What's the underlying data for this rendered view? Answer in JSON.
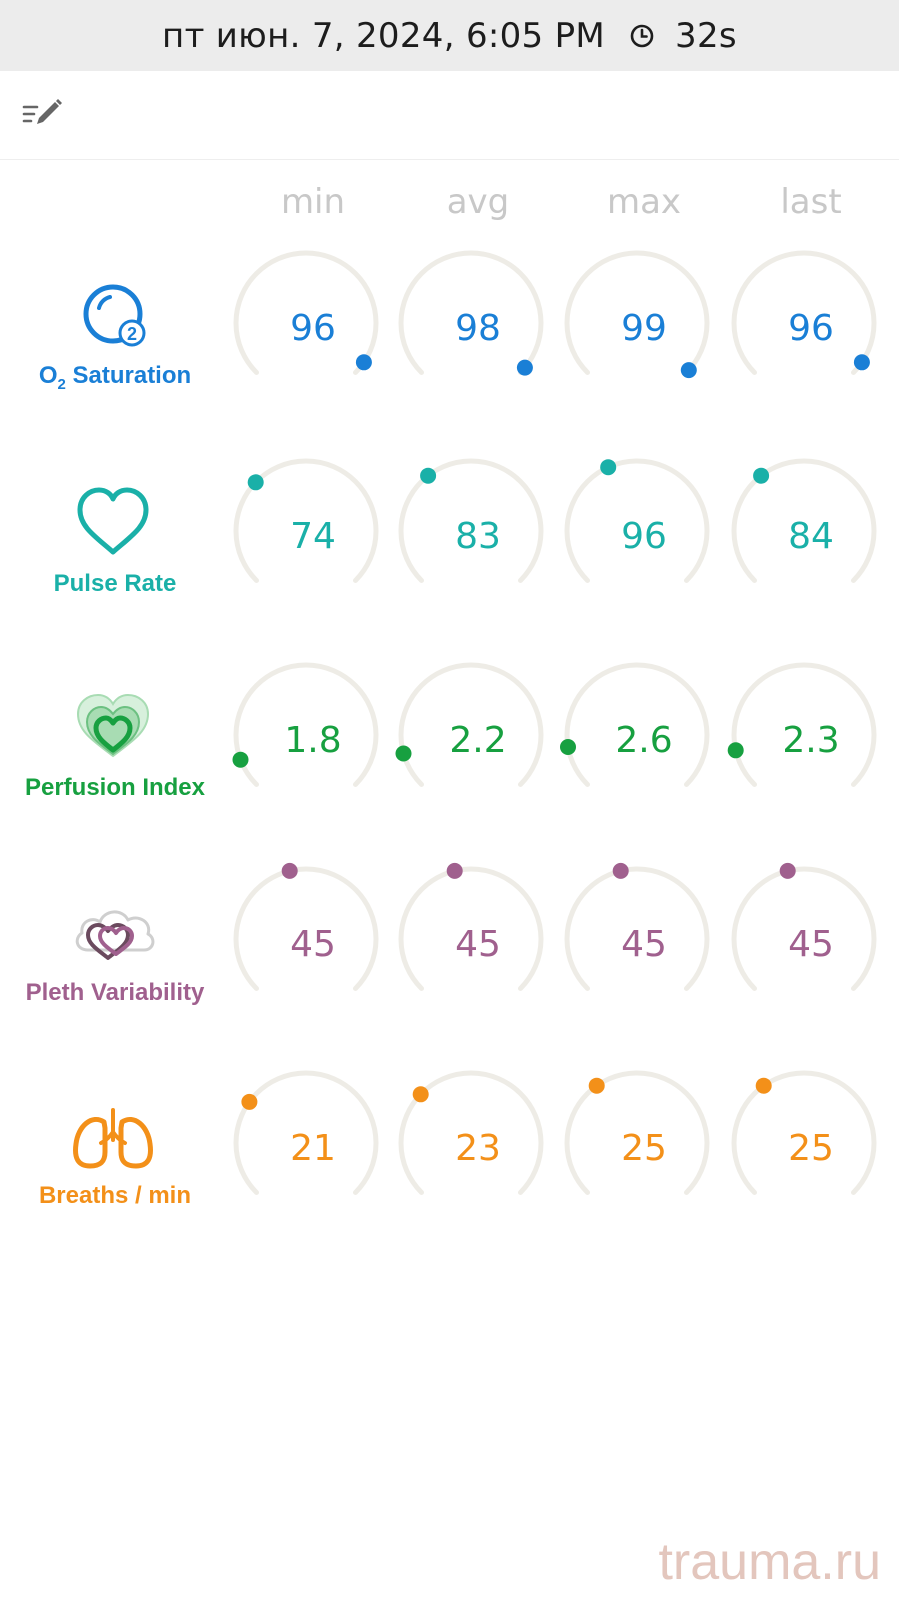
{
  "status_bar": {
    "datetime": "пт июн. 7, 2024, 6:05 PM",
    "elapsed": "32s"
  },
  "columns": [
    "min",
    "avg",
    "max",
    "last"
  ],
  "parameters": [
    {
      "id": "o2-saturation",
      "label_main": "O",
      "label_sub": "2",
      "label_rest": " Saturation",
      "icon": "o2-bubble-icon",
      "color": "#1a7fd6",
      "values": [
        "96",
        "98",
        "99",
        "96"
      ],
      "levels": [
        0.96,
        0.98,
        0.99,
        0.96
      ]
    },
    {
      "id": "pulse-rate",
      "label_main": "Pulse Rate",
      "icon": "heart-outline-icon",
      "color": "#1ab0a8",
      "values": [
        "74",
        "83",
        "96",
        "84"
      ],
      "levels": [
        0.33,
        0.36,
        0.41,
        0.36
      ]
    },
    {
      "id": "perfusion-index",
      "label_main": "Perfusion Index",
      "icon": "layered-hearts-icon",
      "color": "#17a040",
      "values": [
        "1.8",
        "2.2",
        "2.6",
        "2.3"
      ],
      "levels": [
        0.09,
        0.11,
        0.13,
        0.12
      ]
    },
    {
      "id": "pleth-variability",
      "label_main": "Pleth Variability",
      "icon": "hearts-cloud-icon",
      "color": "#a0608e",
      "values": [
        "45",
        "45",
        "45",
        "45"
      ],
      "levels": [
        0.45,
        0.45,
        0.45,
        0.45
      ]
    },
    {
      "id": "breaths-per-min",
      "label_main": "Breaths / min",
      "icon": "lungs-icon",
      "color": "#f39019",
      "values": [
        "21",
        "23",
        "25",
        "25"
      ],
      "levels": [
        0.3,
        0.33,
        0.37,
        0.37
      ]
    }
  ],
  "watermark": "trauma.ru"
}
